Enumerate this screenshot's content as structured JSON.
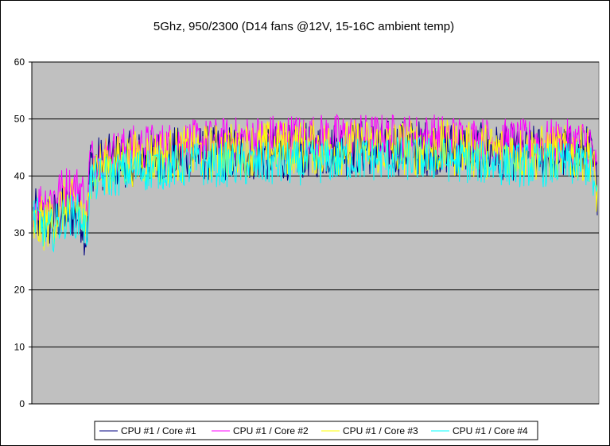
{
  "chart_data": {
    "type": "line",
    "title": "5Ghz, 950/2300 (D14 fans @12V, 15-16C ambient temp)",
    "xlabel": "",
    "ylabel": "",
    "ylim": [
      0,
      60
    ],
    "yticks": [
      0,
      10,
      20,
      30,
      40,
      50,
      60
    ],
    "grid": "horizontal",
    "plot_background": "#c0c0c0",
    "legend_position": "bottom",
    "points_per_series": 700,
    "series": [
      {
        "name": "CPU #1 / Core #1",
        "color": "#000080",
        "profile": [
          [
            0,
            33
          ],
          [
            20,
            32
          ],
          [
            40,
            34
          ],
          [
            60,
            33
          ],
          [
            66,
            29
          ],
          [
            70,
            42
          ],
          [
            120,
            43
          ],
          [
            200,
            44
          ],
          [
            300,
            44
          ],
          [
            400,
            45
          ],
          [
            500,
            45
          ],
          [
            600,
            44
          ],
          [
            690,
            44
          ],
          [
            699,
            38
          ]
        ],
        "amplitude": 5
      },
      {
        "name": "CPU #1 / Core #2",
        "color": "#ff00ff",
        "profile": [
          [
            0,
            35
          ],
          [
            20,
            36
          ],
          [
            40,
            38
          ],
          [
            60,
            38
          ],
          [
            66,
            33
          ],
          [
            70,
            43
          ],
          [
            120,
            45
          ],
          [
            200,
            46
          ],
          [
            300,
            47
          ],
          [
            400,
            47
          ],
          [
            500,
            47
          ],
          [
            600,
            46
          ],
          [
            690,
            46
          ],
          [
            699,
            40
          ]
        ],
        "amplitude": 4
      },
      {
        "name": "CPU #1 / Core #3",
        "color": "#ffff00",
        "profile": [
          [
            0,
            31
          ],
          [
            20,
            32
          ],
          [
            40,
            35
          ],
          [
            60,
            34
          ],
          [
            66,
            29
          ],
          [
            70,
            41
          ],
          [
            120,
            43
          ],
          [
            200,
            44
          ],
          [
            300,
            45
          ],
          [
            400,
            45
          ],
          [
            500,
            45
          ],
          [
            600,
            44
          ],
          [
            690,
            44
          ],
          [
            699,
            37
          ]
        ],
        "amplitude": 5
      },
      {
        "name": "CPU #1 / Core #4",
        "color": "#00ffff",
        "profile": [
          [
            0,
            33
          ],
          [
            20,
            30
          ],
          [
            40,
            33
          ],
          [
            60,
            33
          ],
          [
            66,
            29
          ],
          [
            70,
            39
          ],
          [
            120,
            41
          ],
          [
            200,
            42
          ],
          [
            300,
            42
          ],
          [
            400,
            43
          ],
          [
            500,
            43
          ],
          [
            600,
            42
          ],
          [
            690,
            42
          ],
          [
            699,
            35
          ]
        ],
        "amplitude": 4
      }
    ]
  }
}
